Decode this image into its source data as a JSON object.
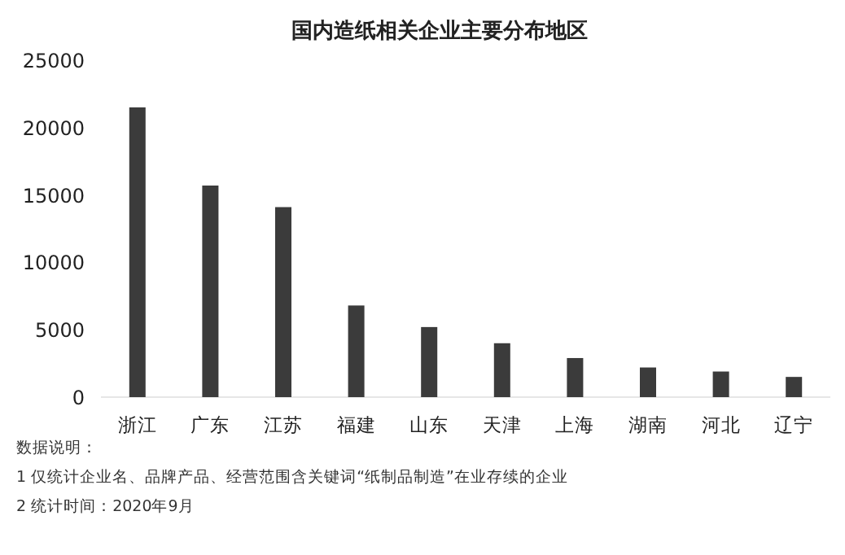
{
  "chart_data": {
    "type": "bar",
    "title": "国内造纸相关企业主要分布地区",
    "categories": [
      "浙江",
      "广东",
      "江苏",
      "福建",
      "山东",
      "天津",
      "上海",
      "湖南",
      "河北",
      "辽宁"
    ],
    "values": [
      21500,
      15700,
      14100,
      6800,
      5200,
      4000,
      2900,
      2200,
      1900,
      1500
    ],
    "color": "#3b3b3b",
    "ylim": [
      0,
      25000
    ],
    "yticks": [
      0,
      5000,
      10000,
      15000,
      20000,
      25000
    ],
    "grid": false,
    "annotations": [
      "数据说明：",
      "1 仅统计企业名、品牌产品、经营范围含关键词“纸制品制造”在业存续的企业",
      "2 统计时间：2020年9月"
    ]
  }
}
